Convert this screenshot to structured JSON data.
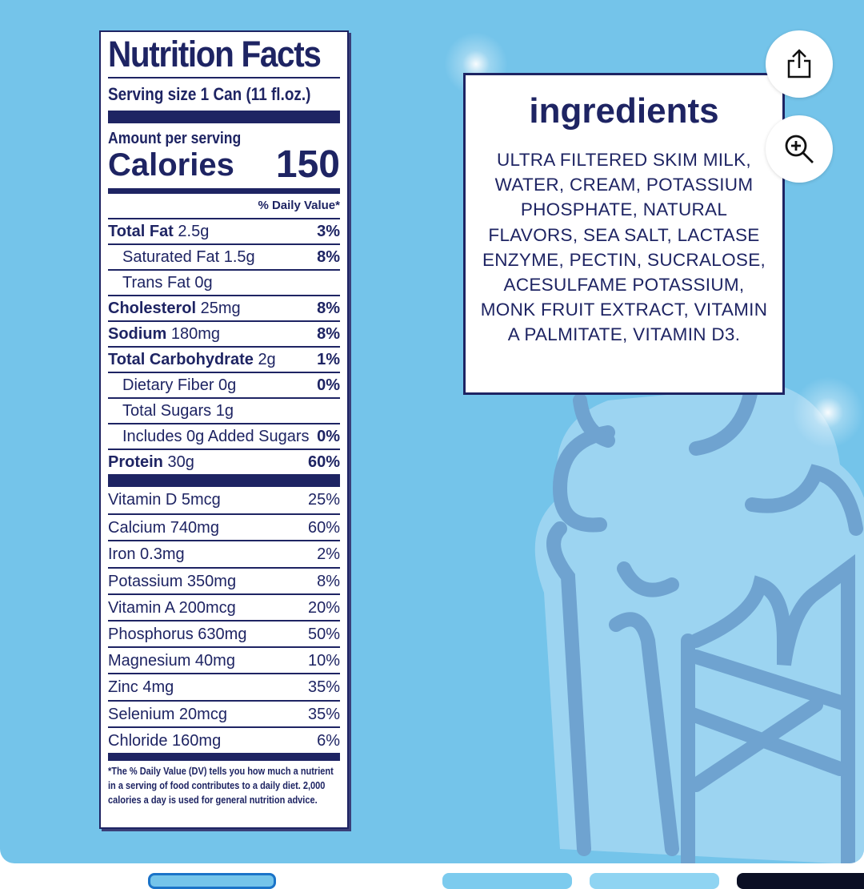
{
  "nutrition": {
    "title": "Nutrition Facts",
    "serving": "Serving size  1 Can (11 fl.oz.)",
    "amount_per_serving": "Amount per serving",
    "calories_label": "Calories",
    "calories": "150",
    "dv_header": "% Daily Value*",
    "rows": [
      {
        "name": "Total Fat",
        "amount": "2.5g",
        "pct": "3%",
        "bold": true,
        "indent": false
      },
      {
        "name": "Saturated Fat",
        "amount": "1.5g",
        "pct": "8%",
        "bold": false,
        "indent": true
      },
      {
        "name": "Trans Fat",
        "amount": "0g",
        "pct": "",
        "bold": false,
        "indent": true
      },
      {
        "name": "Cholesterol",
        "amount": "25mg",
        "pct": "8%",
        "bold": true,
        "indent": false
      },
      {
        "name": "Sodium",
        "amount": "180mg",
        "pct": "8%",
        "bold": true,
        "indent": false
      },
      {
        "name": "Total Carbohydrate",
        "amount": "2g",
        "pct": "1%",
        "bold": true,
        "indent": false
      },
      {
        "name": "Dietary Fiber",
        "amount": "0g",
        "pct": "0%",
        "bold": false,
        "indent": true
      },
      {
        "name": "Total Sugars",
        "amount": "1g",
        "pct": "",
        "bold": false,
        "indent": true
      },
      {
        "name": "Includes 0g Added Sugars",
        "amount": "",
        "pct": "0%",
        "bold": false,
        "indent": true
      },
      {
        "name": "Protein",
        "amount": "30g",
        "pct": "60%",
        "bold": true,
        "indent": false
      }
    ],
    "vitamins": [
      {
        "name": "Vitamin D 5mcg",
        "pct": "25%"
      },
      {
        "name": "Calcium 740mg",
        "pct": "60%"
      },
      {
        "name": "Iron 0.3mg",
        "pct": "2%"
      },
      {
        "name": "Potassium 350mg",
        "pct": "8%"
      },
      {
        "name": "Vitamin A 200mcg",
        "pct": "20%"
      },
      {
        "name": "Phosphorus 630mg",
        "pct": "50%"
      },
      {
        "name": "Magnesium 40mg",
        "pct": "10%"
      },
      {
        "name": "Zinc 4mg",
        "pct": "35%"
      },
      {
        "name": "Selenium 20mcg",
        "pct": "35%"
      },
      {
        "name": "Chloride 160mg",
        "pct": "6%"
      }
    ],
    "footnote": "*The % Daily Value (DV) tells you how much a nutrient in a serving of food contributes to a daily diet. 2,000 calories a day is used for general nutrition advice."
  },
  "ingredients": {
    "title": "ingredients",
    "text": "ULTRA FILTERED SKIM MILK, WATER, CREAM, POTASSIUM PHOSPHATE, NATURAL FLAVORS, SEA SALT, LACTASE ENZYME, PECTIN, SUCRALOSE, ACESULFAME POTASSIUM, MONK FRUIT EXTRACT, VITAMIN A PALMITATE, VITAMIN D3."
  },
  "actions": {
    "share_icon": "share-icon",
    "zoom_icon": "zoom-in-icon"
  },
  "colors": {
    "background": "#74c4ea",
    "navy": "#1e2463",
    "cone_stroke": "#6fa3d0",
    "cone_fill": "#a6d8f2"
  }
}
